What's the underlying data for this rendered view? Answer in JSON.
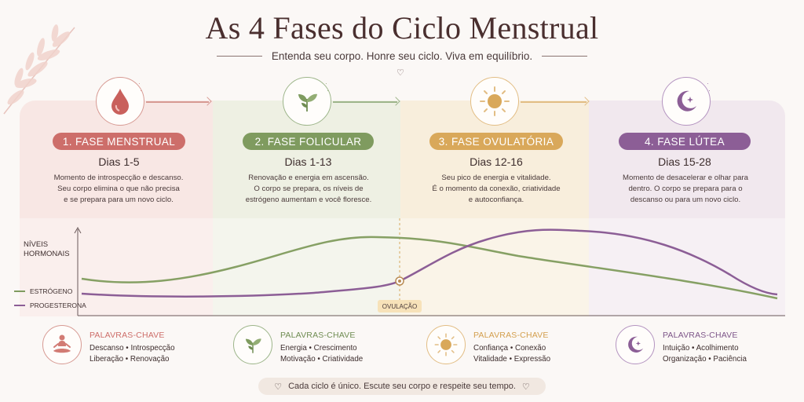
{
  "header": {
    "title": "As 4 Fases do Ciclo Menstrual",
    "subtitle": "Entenda seu corpo. Honre seu ciclo. Viva em equilíbrio."
  },
  "phases": [
    {
      "label": "1. FASE MENSTRUAL",
      "days": "Dias 1-5",
      "desc": [
        "Momento de introspecção e descanso.",
        "Seu corpo elimina o que não precisa",
        "e se prepara para um novo ciclo."
      ],
      "color": "#cd6e6a",
      "icon": "blood-drop-icon"
    },
    {
      "label": "2. FASE FOLICULAR",
      "days": "Dias 1-13",
      "desc": [
        "Renovação e energia em ascensão.",
        "O corpo se prepara, os níveis de",
        "estrógeno aumentam e você floresce."
      ],
      "color": "#7f9b5f",
      "icon": "leaves-icon"
    },
    {
      "label": "3. FASE OVULATÓRIA",
      "days": "Dias 12-16",
      "desc": [
        "Seu pico de energia e vitalidade.",
        "É o momento da conexão, criatividade",
        "e autoconfiança."
      ],
      "color": "#d9a85a",
      "icon": "sun-icon"
    },
    {
      "label": "4. FASE LÚTEA",
      "days": "Dias 15-28",
      "desc": [
        "Momento de desacelerar e olhar para",
        "dentro. O corpo se prepara para o",
        "descanso ou para um novo ciclo."
      ],
      "color": "#8c5e96",
      "icon": "moon-icon"
    }
  ],
  "chart": {
    "levels_label": [
      "NÍVEIS",
      "HORMONAIS"
    ],
    "legend": [
      {
        "name": "ESTRÓGENO",
        "color": "#7f9b5f"
      },
      {
        "name": "PROGESTERONA",
        "color": "#8c5e96"
      }
    ],
    "ovulation_label": "OVULAÇÃO"
  },
  "keywords": [
    {
      "title": "PALAVRAS-CHAVE",
      "lines": [
        "Descanso • Introspecção",
        "Liberação • Renovação"
      ],
      "icon": "meditation-icon"
    },
    {
      "title": "PALAVRAS-CHAVE",
      "lines": [
        "Energia • Crescimento",
        "Motivação • Criatividade"
      ],
      "icon": "leaves-icon"
    },
    {
      "title": "PALAVRAS-CHAVE",
      "lines": [
        "Confiança • Conexão",
        "Vitalidade • Expressão"
      ],
      "icon": "sun-icon"
    },
    {
      "title": "PALAVRAS-CHAVE",
      "lines": [
        "Intuição • Acolhimento",
        "Organização • Paciência"
      ],
      "icon": "moon-icon"
    }
  ],
  "footer": {
    "text": "Cada ciclo é único. Escute seu corpo e respeite seu tempo."
  }
}
